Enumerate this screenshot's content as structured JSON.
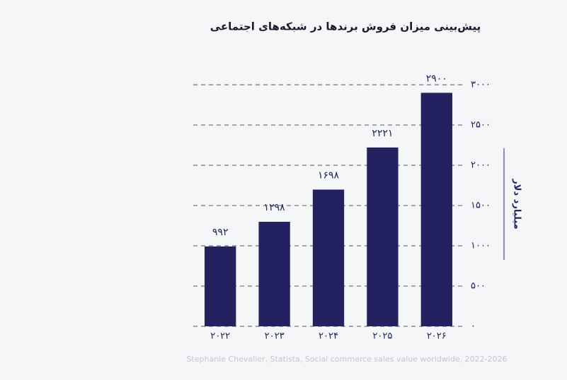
{
  "chart_data": {
    "type": "bar",
    "title": "پیش‌بینی میزان فروش برندها در شبکه‌های اجتماعی",
    "y_axis_label": "میلیارد دلار",
    "source": "Stephanie Chevalier, Statista, Social commerce sales value worldwide, 2022-2026",
    "categories": [
      "۲۰۲۲",
      "۲۰۲۳",
      "۲۰۲۴",
      "۲۰۲۵",
      "۲۰۲۶"
    ],
    "values": [
      992,
      1298,
      1698,
      2221,
      2900
    ],
    "value_labels": [
      "۹۹۲",
      "۱۲۹۸",
      "۱۶۹۸",
      "۲۲۲۱",
      "۲۹۰۰"
    ],
    "color": "#23215f",
    "ylim": [
      0,
      3000
    ],
    "yticks": [
      {
        "value": 0,
        "label": "۰"
      },
      {
        "value": 500,
        "label": "۵۰۰"
      },
      {
        "value": 1000,
        "label": "۱۰۰۰"
      },
      {
        "value": 1500,
        "label": "۱۵۰۰"
      },
      {
        "value": 2000,
        "label": "۲۰۰۰"
      },
      {
        "value": 2500,
        "label": "۲۵۰۰"
      },
      {
        "value": 3000,
        "label": "۳۰۰۰"
      }
    ],
    "grid": true
  }
}
